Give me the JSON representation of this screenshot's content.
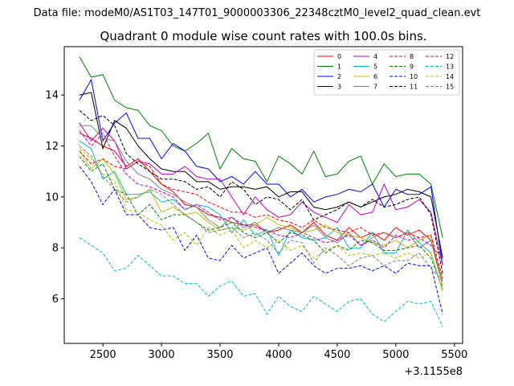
{
  "figure": {
    "suptitle": "Data file: modeM0/AS1T03_147T01_9000003306_22348cztM0_level2_quad_clean.evt"
  },
  "chart_data": {
    "type": "line",
    "title": "Quadrant 0 module wise count rates with 100.0s bins.",
    "xlabel": "",
    "ylabel": "",
    "x_offset_label": "+3.1155e8",
    "xlim": [
      2170,
      5570
    ],
    "ylim": [
      4.25,
      15.9
    ],
    "xticks": [
      2500,
      3000,
      3500,
      4000,
      4500,
      5000,
      5500
    ],
    "yticks": [
      6,
      8,
      10,
      12,
      14
    ],
    "grid": false,
    "legend_position": "upper right",
    "x": [
      2300,
      2400,
      2500,
      2600,
      2700,
      2800,
      2900,
      3000,
      3100,
      3200,
      3300,
      3400,
      3500,
      3600,
      3700,
      3800,
      3900,
      4000,
      4100,
      4200,
      4300,
      4400,
      4500,
      4600,
      4700,
      4800,
      4900,
      5000,
      5100,
      5200,
      5300,
      5400
    ],
    "series": [
      {
        "name": "0",
        "color": "#ff0000",
        "linestyle": "solid",
        "values": [
          12.5,
          12.3,
          12.0,
          11.8,
          11.2,
          11.5,
          11.0,
          10.5,
          10.2,
          9.7,
          9.6,
          9.3,
          9.2,
          9.0,
          8.9,
          8.9,
          8.6,
          8.7,
          8.9,
          8.6,
          9.0,
          8.5,
          8.3,
          8.8,
          8.4,
          8.6,
          8.3,
          8.8,
          8.5,
          8.7,
          8.3,
          6.5
        ]
      },
      {
        "name": "1",
        "color": "#008000",
        "linestyle": "solid",
        "values": [
          15.5,
          14.7,
          14.8,
          13.8,
          13.5,
          13.4,
          12.8,
          12.6,
          12.0,
          11.8,
          12.1,
          12.5,
          11.1,
          11.9,
          11.5,
          11.4,
          10.6,
          11.6,
          11.3,
          10.9,
          11.8,
          10.8,
          10.9,
          11.4,
          11.6,
          10.5,
          11.3,
          10.8,
          10.9,
          10.9,
          10.5,
          8.4
        ]
      },
      {
        "name": "2",
        "color": "#0000ff",
        "linestyle": "solid",
        "values": [
          13.8,
          14.6,
          12.2,
          12.9,
          13.3,
          12.3,
          12.3,
          11.5,
          12.1,
          11.8,
          11.2,
          11.1,
          10.6,
          10.8,
          10.5,
          11.0,
          10.5,
          10.5,
          10.0,
          10.3,
          9.8,
          10.0,
          10.1,
          10.3,
          10.2,
          10.5,
          9.6,
          10.3,
          10.1,
          10.1,
          10.4,
          7.3
        ]
      },
      {
        "name": "3",
        "color": "#000000",
        "linestyle": "solid",
        "values": [
          14.0,
          14.1,
          11.9,
          13.0,
          12.7,
          12.0,
          11.5,
          11.1,
          11.0,
          11.0,
          10.6,
          10.6,
          10.3,
          10.4,
          10.4,
          10.3,
          10.4,
          10.0,
          10.2,
          10.2,
          9.6,
          9.5,
          9.6,
          9.8,
          9.6,
          9.8,
          10.0,
          10.1,
          10.3,
          10.2,
          10.0,
          7.6
        ]
      },
      {
        "name": "4",
        "color": "#bf00bf",
        "linestyle": "solid",
        "values": [
          12.9,
          12.2,
          12.7,
          12.2,
          11.1,
          11.4,
          11.3,
          10.9,
          10.9,
          11.2,
          10.8,
          10.7,
          10.7,
          10.0,
          9.3,
          10.0,
          9.5,
          9.2,
          9.3,
          9.8,
          9.4,
          9.2,
          9.0,
          9.7,
          9.3,
          9.4,
          10.5,
          9.5,
          9.6,
          9.9,
          9.4,
          7.3
        ]
      },
      {
        "name": "5",
        "color": "#00bfbf",
        "linestyle": "solid",
        "values": [
          12.2,
          11.9,
          10.7,
          11.0,
          10.1,
          10.1,
          10.2,
          9.8,
          9.9,
          9.5,
          9.7,
          9.6,
          9.3,
          8.6,
          9.1,
          8.5,
          8.7,
          7.7,
          8.7,
          8.4,
          8.3,
          8.4,
          8.8,
          8.0,
          8.0,
          8.6,
          7.8,
          7.8,
          8.7,
          8.2,
          7.8,
          6.3
        ]
      },
      {
        "name": "6",
        "color": "#bfbf00",
        "linestyle": "solid",
        "values": [
          11.8,
          11.1,
          11.5,
          10.9,
          9.9,
          10.0,
          10.3,
          9.4,
          9.6,
          9.3,
          9.4,
          9.0,
          8.7,
          8.8,
          8.7,
          8.9,
          9.2,
          8.9,
          8.8,
          8.6,
          8.7,
          8.9,
          8.6,
          8.5,
          8.4,
          8.2,
          8.1,
          8.3,
          8.0,
          8.3,
          8.5,
          6.5
        ]
      },
      {
        "name": "7",
        "color": "#808080",
        "linestyle": "solid",
        "values": [
          12.8,
          12.8,
          12.3,
          12.2,
          11.4,
          10.9,
          10.7,
          10.3,
          10.1,
          9.8,
          9.6,
          9.1,
          8.8,
          9.2,
          8.8,
          9.0,
          8.6,
          8.8,
          8.7,
          8.6,
          8.9,
          8.4,
          8.2,
          8.6,
          8.1,
          8.4,
          8.6,
          8.4,
          8.6,
          8.0,
          8.3,
          6.7
        ]
      },
      {
        "name": "8",
        "color": "#ff0000",
        "linestyle": "dashed",
        "values": [
          11.8,
          11.3,
          11.5,
          11.2,
          11.1,
          11.4,
          11.2,
          10.5,
          10.3,
          10.2,
          10.1,
          9.8,
          9.6,
          9.4,
          9.4,
          9.2,
          9.3,
          9.1,
          9.0,
          8.8,
          9.1,
          8.8,
          8.7,
          8.6,
          8.8,
          8.5,
          8.6,
          8.4,
          8.6,
          8.4,
          8.5,
          6.8
        ]
      },
      {
        "name": "9",
        "color": "#008000",
        "linestyle": "dashed",
        "values": [
          11.6,
          11.0,
          11.3,
          10.3,
          10.1,
          9.3,
          9.7,
          9.1,
          9.3,
          9.3,
          9.0,
          8.7,
          8.8,
          9.0,
          8.6,
          8.4,
          8.6,
          8.2,
          8.6,
          8.5,
          8.3,
          7.8,
          8.1,
          7.9,
          8.3,
          8.2,
          7.9,
          7.9,
          8.0,
          8.1,
          7.6,
          6.4
        ]
      },
      {
        "name": "10",
        "color": "#0000ff",
        "linestyle": "dashed",
        "values": [
          11.2,
          10.6,
          9.7,
          10.3,
          9.3,
          9.3,
          8.8,
          8.7,
          8.8,
          7.9,
          8.5,
          7.6,
          7.5,
          8.1,
          7.6,
          7.8,
          8.0,
          7.0,
          7.4,
          7.8,
          7.3,
          7.0,
          7.2,
          7.2,
          7.3,
          7.1,
          7.3,
          7.0,
          7.4,
          7.3,
          7.3,
          5.4
        ]
      },
      {
        "name": "11",
        "color": "#000000",
        "linestyle": "dashed",
        "values": [
          13.4,
          13.0,
          13.2,
          12.8,
          11.7,
          11.3,
          11.0,
          10.7,
          10.7,
          10.6,
          10.3,
          10.4,
          10.0,
          10.6,
          10.3,
          9.7,
          10.0,
          9.9,
          9.5,
          9.9,
          9.1,
          9.3,
          9.5,
          9.8,
          9.6,
          9.9,
          9.6,
          9.7,
          9.9,
          10.0,
          9.3,
          7.0
        ]
      },
      {
        "name": "12",
        "color": "#bf00bf",
        "linestyle": "dashed",
        "values": [
          12.6,
          12.0,
          12.5,
          11.6,
          10.9,
          10.5,
          10.4,
          10.2,
          10.0,
          9.5,
          9.7,
          9.4,
          9.1,
          9.2,
          8.9,
          8.8,
          8.7,
          8.5,
          8.4,
          8.6,
          8.4,
          8.2,
          8.3,
          8.5,
          8.1,
          8.3,
          8.0,
          8.5,
          8.3,
          8.4,
          8.1,
          7.6
        ]
      },
      {
        "name": "13",
        "color": "#00bfbf",
        "linestyle": "dashed",
        "values": [
          8.4,
          8.1,
          7.8,
          7.1,
          7.2,
          7.7,
          7.3,
          6.9,
          6.9,
          6.6,
          6.6,
          6.1,
          6.5,
          6.7,
          6.1,
          6.2,
          5.4,
          6.1,
          5.7,
          5.5,
          6.1,
          5.8,
          5.5,
          5.9,
          6.0,
          5.4,
          5.1,
          5.5,
          5.9,
          5.8,
          5.9,
          4.9
        ]
      },
      {
        "name": "14",
        "color": "#bfbf00",
        "linestyle": "dashed",
        "values": [
          11.9,
          11.5,
          10.9,
          10.6,
          9.5,
          9.4,
          9.1,
          8.9,
          8.3,
          8.6,
          8.1,
          8.8,
          8.5,
          8.7,
          8.0,
          8.3,
          8.0,
          8.3,
          7.9,
          8.1,
          7.6,
          7.9,
          8.1,
          7.7,
          7.8,
          7.7,
          7.8,
          7.6,
          7.8,
          7.6,
          7.8,
          6.3
        ]
      },
      {
        "name": "15",
        "color": "#808080",
        "linestyle": "dashed",
        "values": [
          12.0,
          11.6,
          10.8,
          10.3,
          9.8,
          10.0,
          10.3,
          10.1,
          9.7,
          9.3,
          9.0,
          8.6,
          8.7,
          8.8,
          8.4,
          8.6,
          8.3,
          7.8,
          8.3,
          8.2,
          7.4,
          8.0,
          7.7,
          7.3,
          7.6,
          7.7,
          7.3,
          7.5,
          7.5,
          7.8,
          7.2,
          6.7
        ]
      }
    ]
  }
}
